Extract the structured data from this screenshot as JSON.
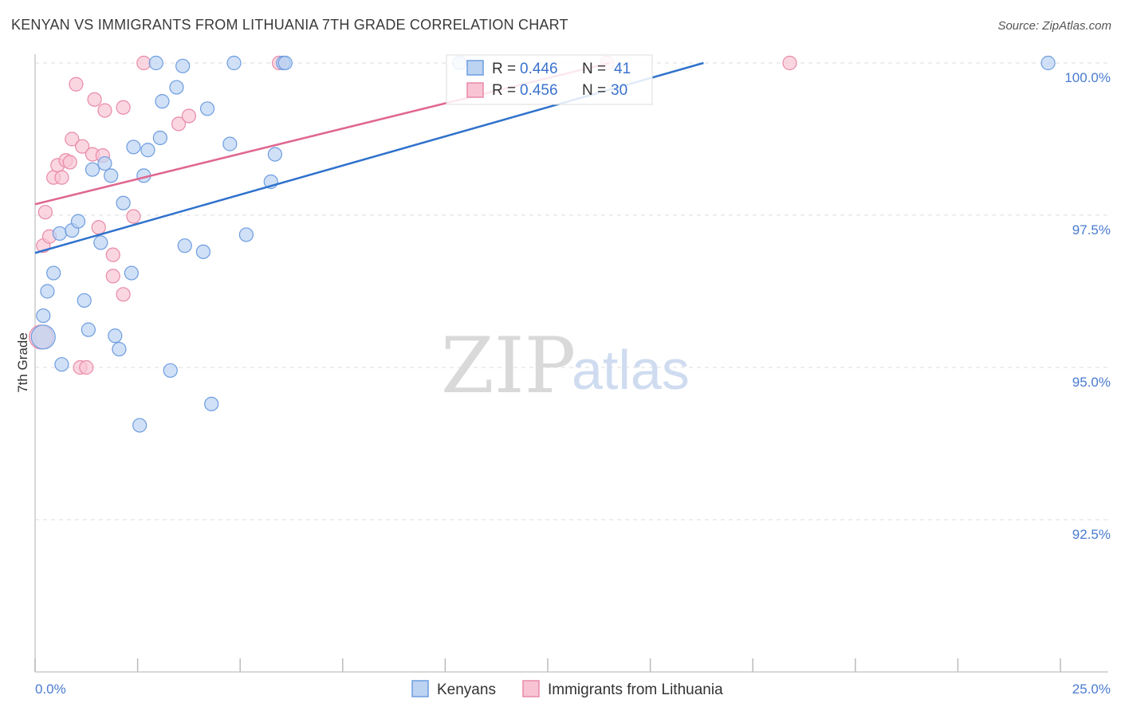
{
  "title": "KENYAN VS IMMIGRANTS FROM LITHUANIA 7TH GRADE CORRELATION CHART",
  "source": "Source: ZipAtlas.com",
  "watermark": {
    "zip": "ZIP",
    "atlas": "atlas"
  },
  "colors": {
    "blue_fill": "#bcd3f2",
    "blue_stroke": "#6d9de0",
    "blue_line": "#2f72cc",
    "pink_fill": "#f8c4d4",
    "pink_stroke": "#e98aa8",
    "pink_line": "#e0668f",
    "axis_text": "#4a7bd0",
    "grid": "#dddddd"
  },
  "legend": {
    "rows": [
      {
        "r_label": "R = ",
        "r_value": "0.446",
        "n_label": "N = ",
        "n_value": "41"
      },
      {
        "r_label": "R = ",
        "r_value": "0.456",
        "n_label": "N = ",
        "n_value": "30"
      }
    ]
  },
  "bottom_legend": [
    "Kenyans",
    "Immigrants from Lithuania"
  ],
  "chart_data": {
    "type": "scatter",
    "title": "KENYAN VS IMMIGRANTS FROM LITHUANIA 7TH GRADE CORRELATION CHART",
    "xlabel": "",
    "ylabel": "7th Grade",
    "xlim": [
      0,
      25
    ],
    "ylim": [
      90.7,
      100.25
    ],
    "x_tick_labels": [
      "0.0%",
      "25.0%"
    ],
    "y_ticks": [
      92.5,
      95.0,
      97.5,
      100.0
    ],
    "y_tick_labels": [
      "92.5%",
      "95.0%",
      "97.5%",
      "100.0%"
    ],
    "grid": true,
    "legend_position": "top-center",
    "series": [
      {
        "name": "Kenyans",
        "color": "#6d9de0",
        "trend": {
          "x": [
            0.0,
            16.3
          ],
          "y": [
            96.88,
            100.0
          ]
        },
        "points": [
          {
            "x": 0.2,
            "y": 95.5,
            "big": true
          },
          {
            "x": 0.2,
            "y": 95.85
          },
          {
            "x": 0.3,
            "y": 96.25
          },
          {
            "x": 0.45,
            "y": 96.55
          },
          {
            "x": 0.6,
            "y": 97.2
          },
          {
            "x": 0.65,
            "y": 95.05
          },
          {
            "x": 0.9,
            "y": 97.25
          },
          {
            "x": 1.05,
            "y": 97.4
          },
          {
            "x": 1.2,
            "y": 96.1
          },
          {
            "x": 1.3,
            "y": 95.62
          },
          {
            "x": 1.4,
            "y": 98.25
          },
          {
            "x": 1.6,
            "y": 97.05
          },
          {
            "x": 1.7,
            "y": 98.35
          },
          {
            "x": 1.85,
            "y": 98.15
          },
          {
            "x": 1.95,
            "y": 95.52
          },
          {
            "x": 2.05,
            "y": 95.3
          },
          {
            "x": 2.15,
            "y": 97.7
          },
          {
            "x": 2.35,
            "y": 96.55
          },
          {
            "x": 2.4,
            "y": 98.62
          },
          {
            "x": 2.55,
            "y": 94.05
          },
          {
            "x": 2.65,
            "y": 98.15
          },
          {
            "x": 2.75,
            "y": 98.57
          },
          {
            "x": 2.95,
            "y": 100.0
          },
          {
            "x": 3.05,
            "y": 98.77
          },
          {
            "x": 3.1,
            "y": 99.37
          },
          {
            "x": 3.3,
            "y": 94.95
          },
          {
            "x": 3.45,
            "y": 99.6
          },
          {
            "x": 3.6,
            "y": 99.95
          },
          {
            "x": 3.65,
            "y": 97.0
          },
          {
            "x": 4.1,
            "y": 96.9
          },
          {
            "x": 4.2,
            "y": 99.25
          },
          {
            "x": 4.3,
            "y": 94.4
          },
          {
            "x": 4.75,
            "y": 98.67
          },
          {
            "x": 4.85,
            "y": 100.0
          },
          {
            "x": 5.15,
            "y": 97.18
          },
          {
            "x": 5.75,
            "y": 98.05
          },
          {
            "x": 5.85,
            "y": 98.5
          },
          {
            "x": 6.05,
            "y": 100.0
          },
          {
            "x": 10.35,
            "y": 100.0
          },
          {
            "x": 24.7,
            "y": 100.0
          },
          {
            "x": 6.1,
            "y": 100.0
          }
        ]
      },
      {
        "name": "Immigrants from Lithuania",
        "color": "#e98aa8",
        "trend": {
          "x": [
            0.0,
            14.0
          ],
          "y": [
            97.68,
            100.0
          ]
        },
        "points": [
          {
            "x": 0.15,
            "y": 95.5,
            "big": true
          },
          {
            "x": 0.2,
            "y": 97.0
          },
          {
            "x": 0.25,
            "y": 97.55
          },
          {
            "x": 0.35,
            "y": 97.15
          },
          {
            "x": 0.45,
            "y": 98.12
          },
          {
            "x": 0.55,
            "y": 98.32
          },
          {
            "x": 0.65,
            "y": 98.12
          },
          {
            "x": 0.75,
            "y": 98.4
          },
          {
            "x": 0.85,
            "y": 98.37
          },
          {
            "x": 0.9,
            "y": 98.75
          },
          {
            "x": 1.0,
            "y": 99.65
          },
          {
            "x": 1.1,
            "y": 95.0
          },
          {
            "x": 1.15,
            "y": 98.63
          },
          {
            "x": 1.25,
            "y": 95.0
          },
          {
            "x": 1.4,
            "y": 98.5
          },
          {
            "x": 1.45,
            "y": 99.4
          },
          {
            "x": 1.55,
            "y": 97.3
          },
          {
            "x": 1.65,
            "y": 98.48
          },
          {
            "x": 1.7,
            "y": 99.22
          },
          {
            "x": 1.9,
            "y": 96.85
          },
          {
            "x": 1.9,
            "y": 96.5
          },
          {
            "x": 2.15,
            "y": 96.2
          },
          {
            "x": 2.15,
            "y": 99.27
          },
          {
            "x": 2.4,
            "y": 97.48
          },
          {
            "x": 2.65,
            "y": 100.0
          },
          {
            "x": 3.5,
            "y": 99.0
          },
          {
            "x": 3.75,
            "y": 99.13
          },
          {
            "x": 5.95,
            "y": 100.0
          },
          {
            "x": 13.95,
            "y": 100.0
          },
          {
            "x": 18.4,
            "y": 100.0
          }
        ]
      }
    ]
  }
}
